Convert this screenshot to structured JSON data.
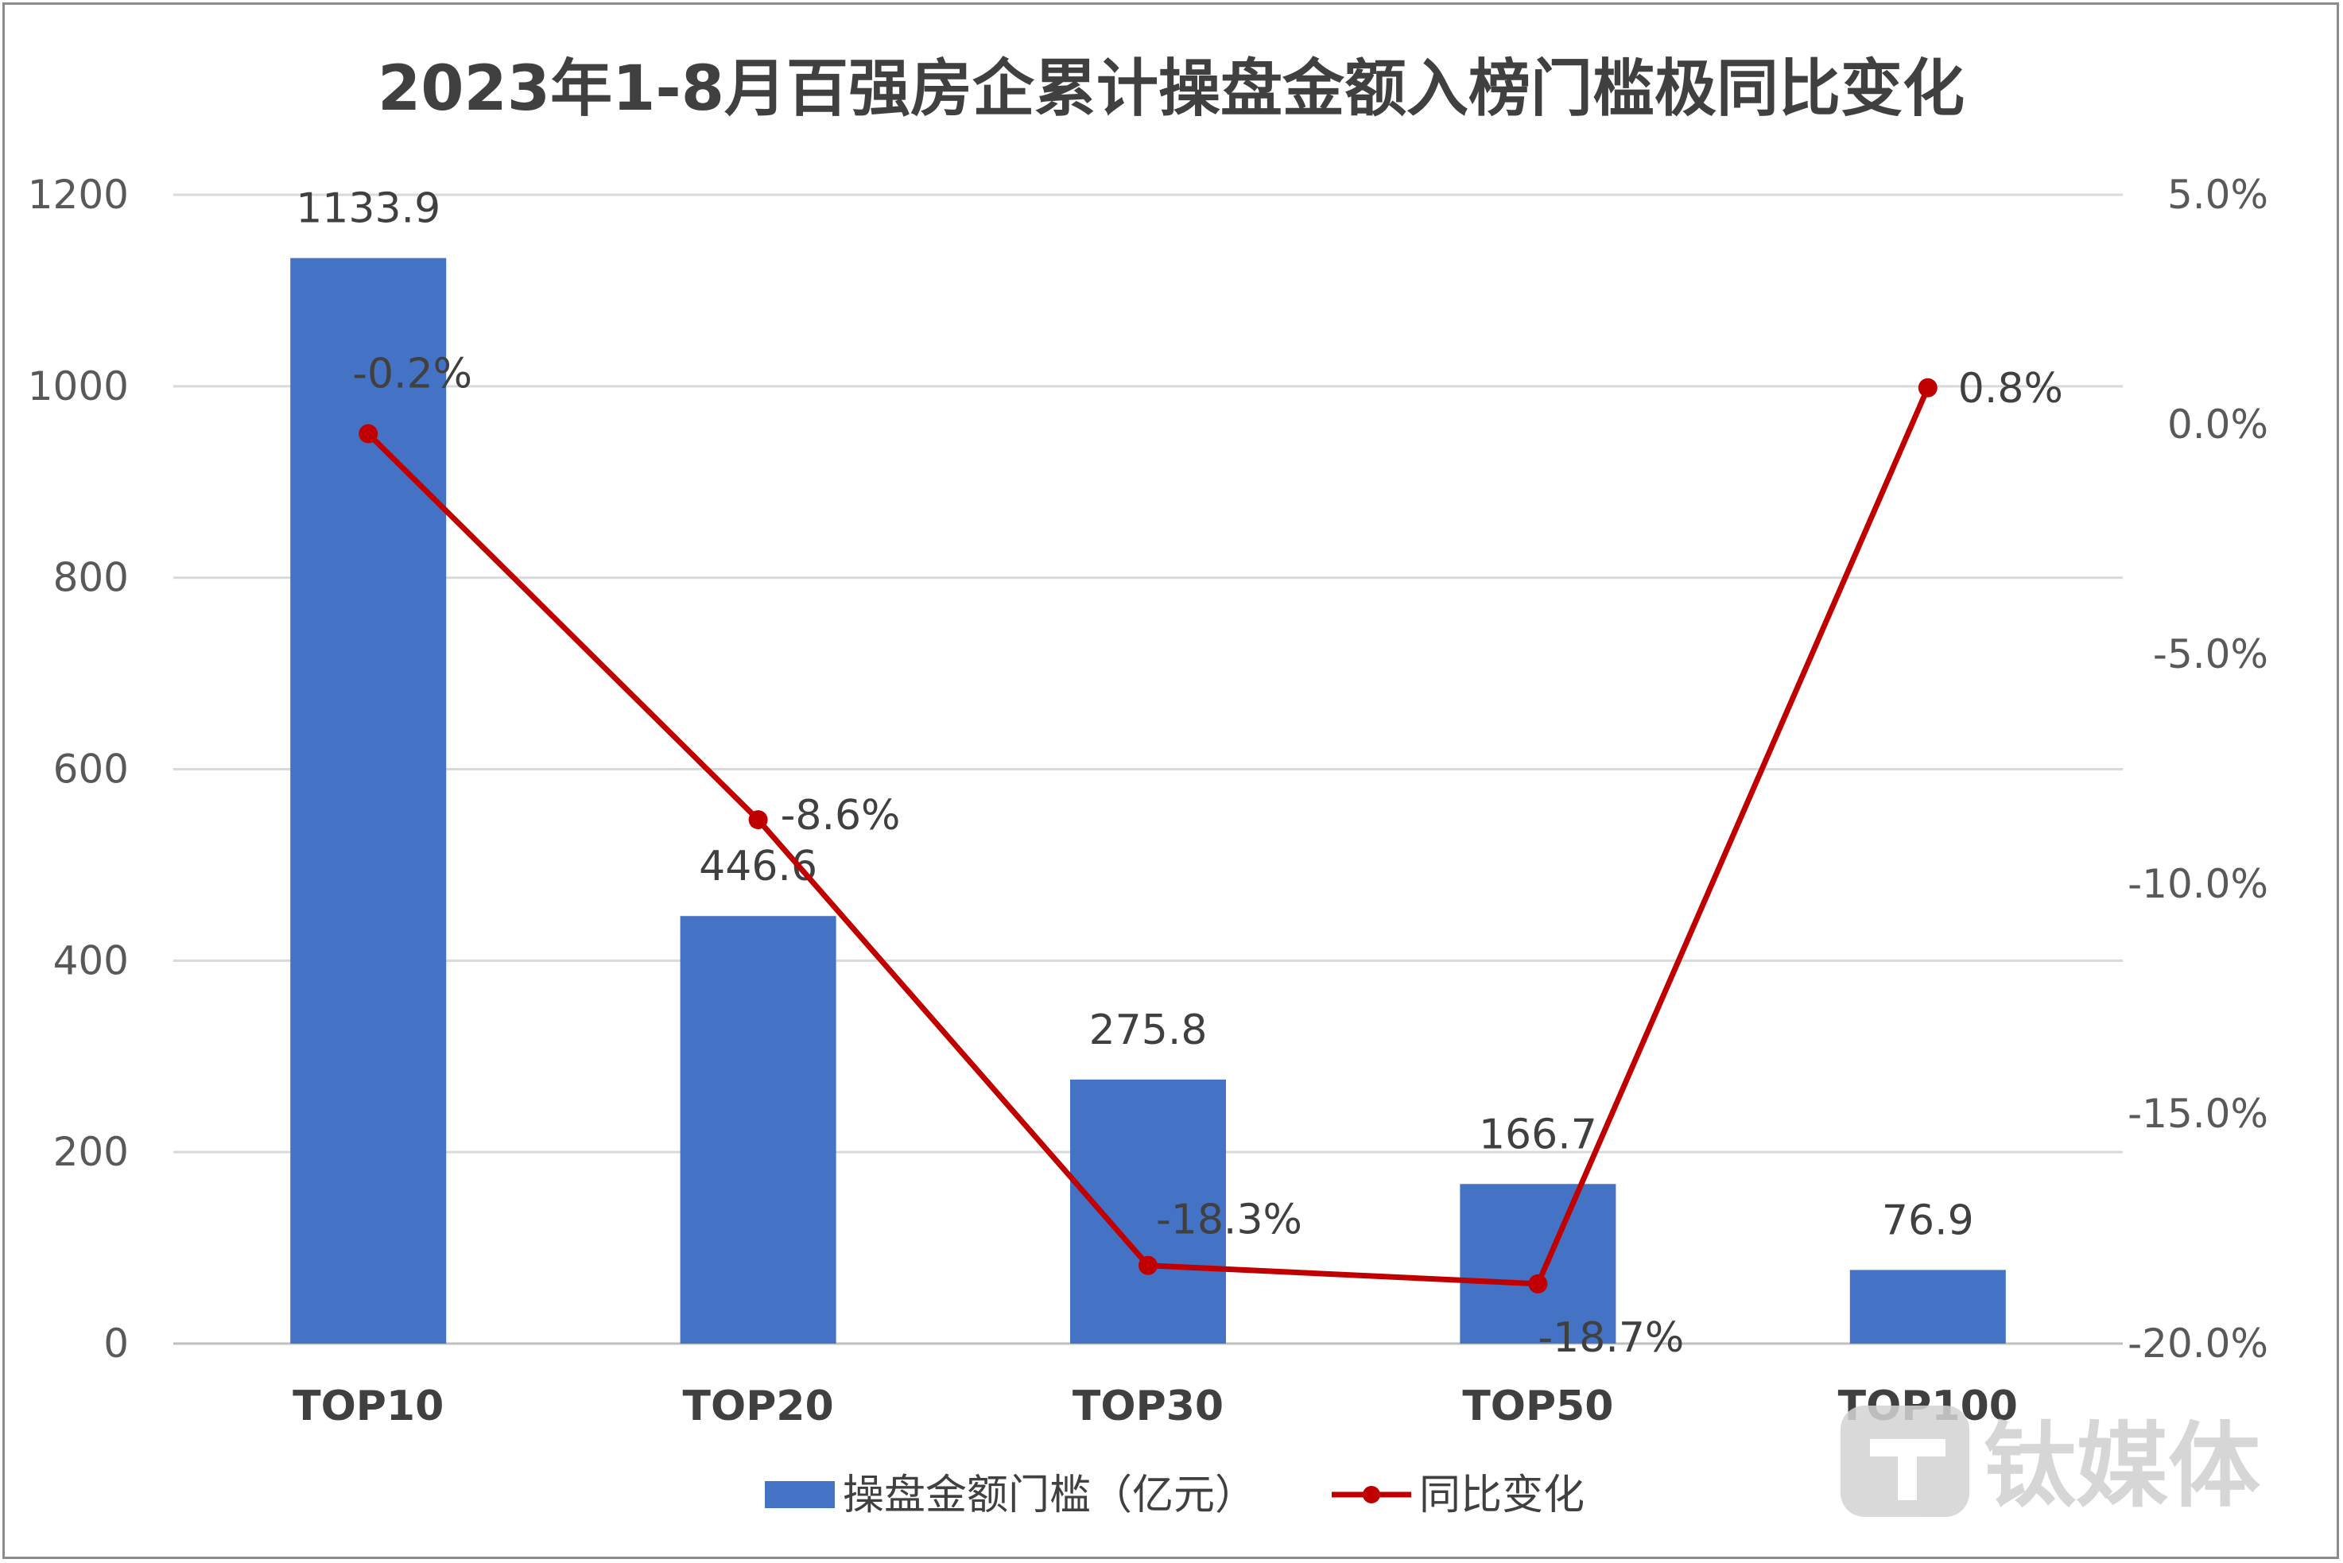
{
  "chart_data": {
    "type": "bar",
    "title": "2023年1-8月百强房企累计操盘金额入榜门槛极同比变化",
    "categories": [
      "TOP10",
      "TOP20",
      "TOP30",
      "TOP50",
      "TOP100"
    ],
    "series": [
      {
        "name": "操盘金额门槛（亿元）",
        "type": "bar",
        "axis": "left",
        "values": [
          1133.9,
          446.6,
          275.8,
          166.7,
          76.9
        ],
        "labels": [
          "1133.9",
          "446.6",
          "275.8",
          "166.7",
          "76.9"
        ],
        "color": "#4472C4"
      },
      {
        "name": "同比变化",
        "type": "line",
        "axis": "right",
        "values": [
          -0.2,
          -8.6,
          -18.3,
          -18.7,
          0.8
        ],
        "labels": [
          "-0.2%",
          "-8.6%",
          "-18.3%",
          "-18.7%",
          "0.8%"
        ],
        "color": "#C00000"
      }
    ],
    "y_left": {
      "min": 0,
      "max": 1200,
      "ticks": [
        0,
        200,
        400,
        600,
        800,
        1000,
        1200
      ],
      "tick_labels": [
        "0",
        "200",
        "400",
        "600",
        "800",
        "1000",
        "1200"
      ]
    },
    "y_right": {
      "min": -20,
      "max": 5,
      "ticks": [
        -20,
        -15,
        -10,
        -5,
        0,
        5
      ],
      "tick_labels": [
        "-20.0%",
        "-15.0%",
        "-10.0%",
        "-5.0%",
        "0.0%",
        "5.0%"
      ]
    },
    "grid": true,
    "legend_position": "bottom"
  },
  "watermark": {
    "text": "钛媒体",
    "icon": "taimeiti-logo-icon"
  },
  "colors": {
    "bar": "#4472C4",
    "line": "#C00000",
    "grid": "#d9d9d9",
    "text": "#404040"
  }
}
